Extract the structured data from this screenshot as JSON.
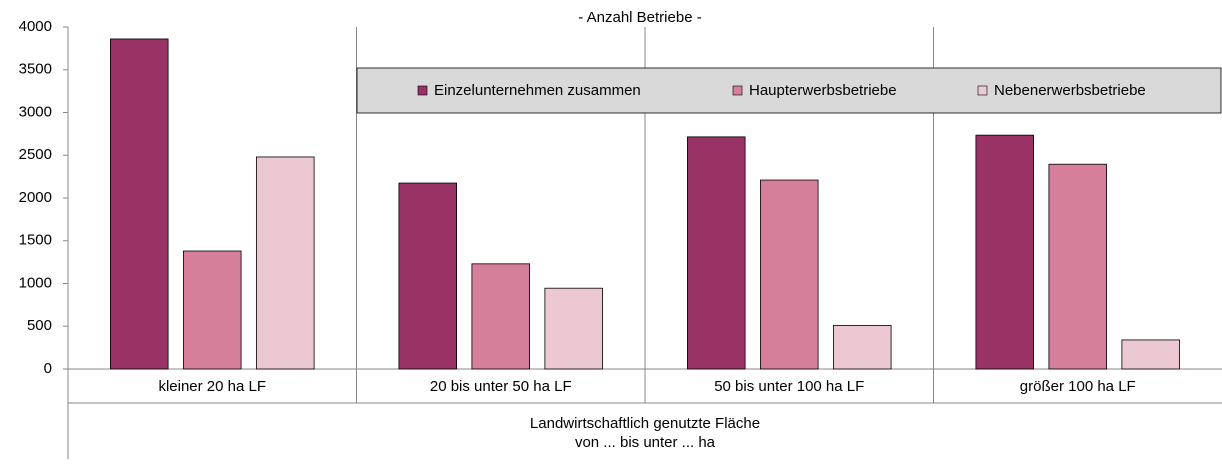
{
  "chart_data": {
    "type": "bar",
    "title": "- Anzahl Betriebe -",
    "x_label": [
      "Landwirtschaftlich genutzte Fläche",
      "von ... bis unter ... ha"
    ],
    "categories": [
      "kleiner 20 ha LF",
      "20 bis unter 50 ha LF",
      "50 bis unter 100 ha LF",
      "größer 100 ha LF"
    ],
    "series": [
      {
        "name": "Einzelunternehmen zusammen",
        "color": "#993366",
        "values": [
          3860,
          2175,
          2715,
          2735
        ]
      },
      {
        "name": "Haupterwerbsbetriebe",
        "color": "#d67f9a",
        "values": [
          1380,
          1230,
          2210,
          2395
        ]
      },
      {
        "name": "Nebenerwerbsbetriebe",
        "color": "#ecc8d3",
        "values": [
          2480,
          945,
          510,
          340
        ]
      }
    ],
    "ylim": [
      0,
      4000
    ],
    "yticks": [
      0,
      500,
      1000,
      1500,
      2000,
      2500,
      3000,
      3500,
      4000
    ],
    "grid": false
  }
}
